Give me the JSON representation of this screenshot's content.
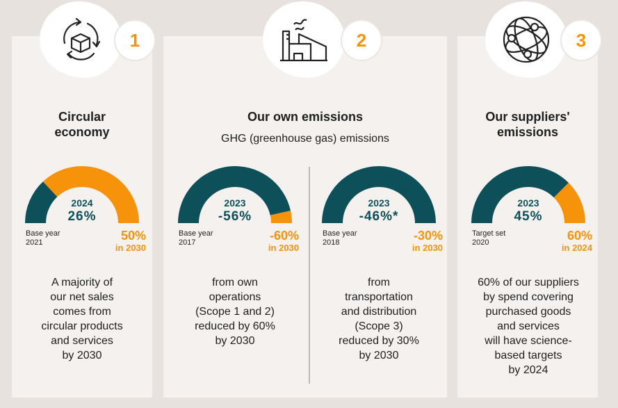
{
  "colors": {
    "teal": "#0e5059",
    "orange": "#f7930a"
  },
  "panels": [
    {
      "number": "1",
      "icon": "circular-box-icon",
      "title": "Circular economy",
      "title_lines": [
        "Circular",
        "economy"
      ]
    },
    {
      "number": "2",
      "icon": "factory-icon",
      "title": "Our own emissions",
      "subtitle": "GHG (greenhouse gas) emissions"
    },
    {
      "number": "3",
      "icon": "network-globe-icon",
      "title_lines": [
        "Our suppliers'",
        "emissions"
      ]
    }
  ],
  "gauges": [
    {
      "year": "2024",
      "value": "26%",
      "base_label": "Base year",
      "base_year": "2021",
      "target": "50%",
      "target_when": "in 2030",
      "fill_fraction": 0.26,
      "description": "A majority of\nour net sales\ncomes from\ncircular products\nand services\nby 2030"
    },
    {
      "year": "2023",
      "value": "-56%",
      "base_label": "Base year",
      "base_year": "2017",
      "target": "-60%",
      "target_when": "in 2030",
      "fill_fraction": 0.93,
      "description": "from own\noperations\n(Scope 1 and 2)\nreduced by 60%\nby 2030"
    },
    {
      "year": "2023",
      "value": "-46%*",
      "base_label": "Base year",
      "base_year": "2018",
      "target": "-30%",
      "target_when": "in 2030",
      "fill_fraction": 1.0,
      "description": "from\ntransportation\nand distribution\n(Scope 3)\nreduced by 30%\nby 2030"
    },
    {
      "year": "2023",
      "value": "45%",
      "base_label": "Target set",
      "base_year": "2020",
      "target": "60%",
      "target_when": "in 2024",
      "fill_fraction": 0.75,
      "description": "60% of our suppliers\nby spend covering\npurchased goods\nand services\nwill have science-\nbased targets\nby 2024"
    }
  ]
}
